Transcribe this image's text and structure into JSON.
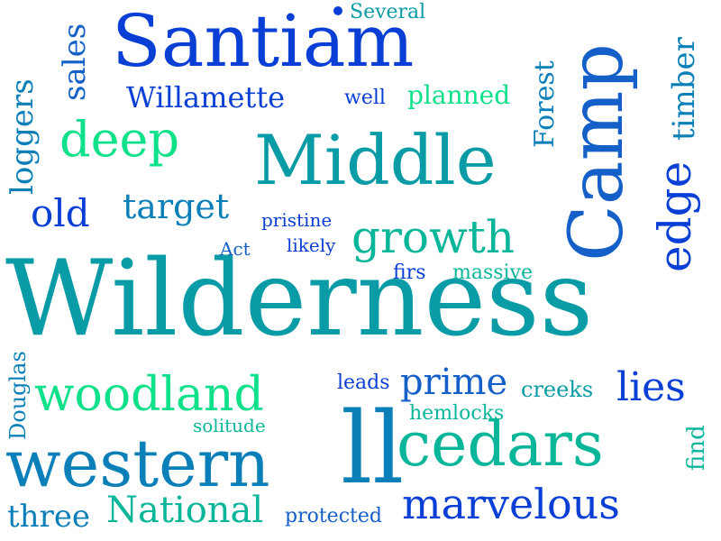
{
  "colors": {
    "blue": "#0a3fd6",
    "mid_blue": "#1560c8",
    "teal_blue": "#0b80b8",
    "teal": "#0a9ca6",
    "sea": "#0ab69a",
    "mint": "#0fe08a"
  },
  "words": {
    "wilderness": "Wilderness",
    "santiam": "Santiam",
    "middle": "Middle",
    "camp": "Camp",
    "western": "western",
    "ll": "ll",
    "cedars": "cedars",
    "woodland": "woodland",
    "marvelous": "marvelous",
    "national": "National",
    "growth": "growth",
    "deep": "deep",
    "willamette": "Willamette",
    "old": "old",
    "target": "target",
    "lies": "lies",
    "prime": "prime",
    "edge": "edge",
    "timber": "timber",
    "forest": "Forest",
    "loggers": "loggers",
    "sales": "sales",
    "planned": "planned",
    "well": "well",
    "several": "Several",
    "pristine": "pristine",
    "likely": "likely",
    "act": "Act",
    "firs": "firs",
    "massive": "massive",
    "leads": "leads",
    "creeks": "creeks",
    "hemlocks": "hemlocks",
    "solitude": "solitude",
    "douglas": "Douglas",
    "three": "three",
    "protected": "protected",
    "find": "find"
  }
}
